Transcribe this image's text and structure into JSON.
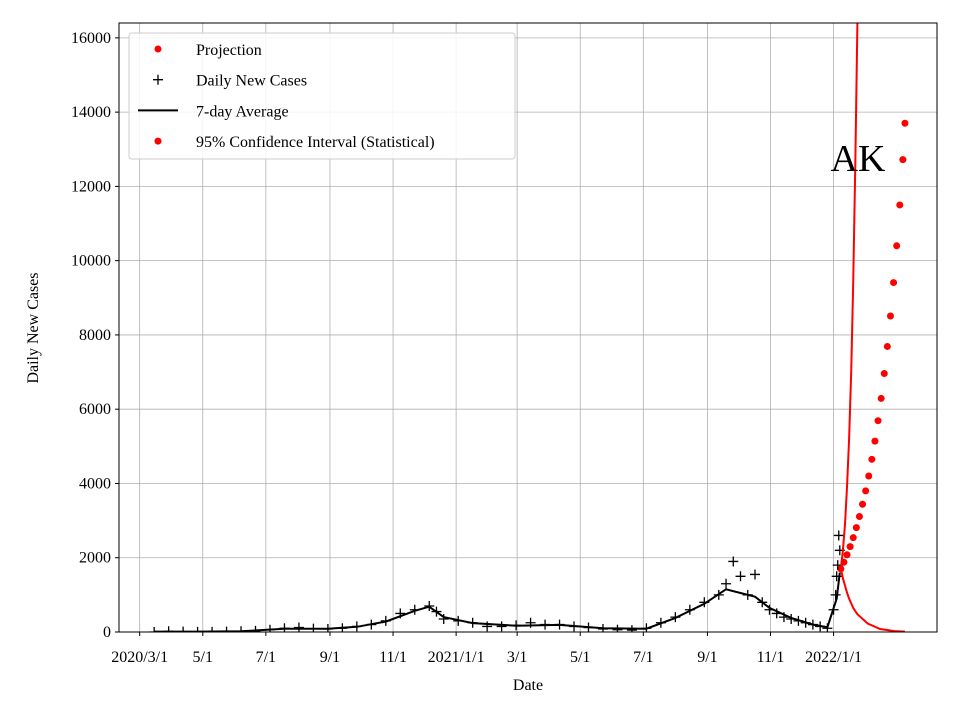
{
  "chart_data": {
    "type": "line",
    "annotation": "AK",
    "x_label": "Date",
    "y_label": "Daily New Cases",
    "xlim": [
      "2020-02-10",
      "2022-04-11"
    ],
    "xticks": [
      {
        "value": "2020-03-01",
        "label": "2020/3/1"
      },
      {
        "value": "2020-05-01",
        "label": "5/1"
      },
      {
        "value": "2020-07-01",
        "label": "7/1"
      },
      {
        "value": "2020-09-01",
        "label": "9/1"
      },
      {
        "value": "2020-11-01",
        "label": "11/1"
      },
      {
        "value": "2021-01-01",
        "label": "2021/1/1"
      },
      {
        "value": "2021-03-01",
        "label": "3/1"
      },
      {
        "value": "2021-05-01",
        "label": "5/1"
      },
      {
        "value": "2021-07-01",
        "label": "7/1"
      },
      {
        "value": "2021-09-01",
        "label": "9/1"
      },
      {
        "value": "2021-11-01",
        "label": "11/1"
      },
      {
        "value": "2022-01-01",
        "label": "2022/1/1"
      }
    ],
    "ylim": [
      0,
      16400
    ],
    "yticks": [
      0,
      2000,
      4000,
      6000,
      8000,
      10000,
      12000,
      14000,
      16000
    ],
    "grid": true,
    "legend": "upper left",
    "series": [
      {
        "name": "Projection",
        "color": "#ff0000",
        "marker": "dot",
        "x": [
          "2022-01-08",
          "2022-01-11",
          "2022-01-14",
          "2022-01-17",
          "2022-01-20",
          "2022-01-23",
          "2022-01-26",
          "2022-01-29",
          "2022-02-01",
          "2022-02-04",
          "2022-02-07",
          "2022-02-10",
          "2022-02-13",
          "2022-02-16",
          "2022-02-19",
          "2022-02-22",
          "2022-02-25",
          "2022-02-28",
          "2022-03-03",
          "2022-03-06",
          "2022-03-09",
          "2022-03-11"
        ],
        "values": [
          1700,
          1880,
          2080,
          2300,
          2540,
          2810,
          3110,
          3440,
          3800,
          4200,
          4650,
          5140,
          5690,
          6290,
          6960,
          7690,
          8510,
          9410,
          10400,
          11500,
          12720,
          13700
        ]
      },
      {
        "name": "Daily New Cases",
        "color": "#000000",
        "marker": "plus",
        "x": [
          "2020-03-15",
          "2020-03-29",
          "2020-04-12",
          "2020-04-26",
          "2020-05-10",
          "2020-05-24",
          "2020-06-07",
          "2020-06-21",
          "2020-07-05",
          "2020-07-19",
          "2020-08-02",
          "2020-08-16",
          "2020-08-30",
          "2020-09-13",
          "2020-09-27",
          "2020-10-11",
          "2020-10-25",
          "2020-11-08",
          "2020-11-22",
          "2020-12-06",
          "2020-12-13",
          "2020-12-20",
          "2021-01-03",
          "2021-01-17",
          "2021-01-31",
          "2021-02-14",
          "2021-02-28",
          "2021-03-14",
          "2021-03-28",
          "2021-04-11",
          "2021-04-25",
          "2021-05-09",
          "2021-05-23",
          "2021-06-06",
          "2021-06-20",
          "2021-07-04",
          "2021-07-18",
          "2021-08-01",
          "2021-08-15",
          "2021-08-29",
          "2021-09-12",
          "2021-09-19",
          "2021-09-26",
          "2021-10-03",
          "2021-10-10",
          "2021-10-17",
          "2021-10-24",
          "2021-10-31",
          "2021-11-07",
          "2021-11-14",
          "2021-11-21",
          "2021-11-28",
          "2021-12-05",
          "2021-12-12",
          "2021-12-19",
          "2021-12-26",
          "2022-01-01",
          "2022-01-03",
          "2022-01-04",
          "2022-01-05",
          "2022-01-06",
          "2022-01-07"
        ],
        "values": [
          0,
          20,
          10,
          5,
          5,
          10,
          20,
          30,
          60,
          100,
          120,
          90,
          80,
          100,
          150,
          200,
          300,
          500,
          600,
          700,
          550,
          350,
          300,
          250,
          150,
          150,
          180,
          250,
          200,
          200,
          150,
          120,
          80,
          60,
          50,
          100,
          250,
          400,
          600,
          800,
          1000,
          1300,
          1900,
          1500,
          1000,
          1550,
          800,
          600,
          500,
          400,
          350,
          300,
          250,
          200,
          150,
          100,
          600,
          1000,
          1500,
          1800,
          2600,
          2200
        ]
      },
      {
        "name": "7-day Average",
        "color": "#000000",
        "marker": "line",
        "x": [
          "2020-03-15",
          "2020-04-26",
          "2020-06-07",
          "2020-07-19",
          "2020-08-30",
          "2020-09-27",
          "2020-10-25",
          "2020-11-22",
          "2020-12-06",
          "2020-12-20",
          "2021-01-17",
          "2021-02-28",
          "2021-04-11",
          "2021-05-23",
          "2021-07-04",
          "2021-08-01",
          "2021-08-29",
          "2021-09-19",
          "2021-10-03",
          "2021-10-17",
          "2021-10-31",
          "2021-11-21",
          "2021-12-12",
          "2021-12-26",
          "2022-01-04",
          "2022-01-07"
        ],
        "values": [
          10,
          10,
          20,
          90,
          90,
          140,
          280,
          570,
          680,
          400,
          240,
          170,
          190,
          100,
          90,
          380,
          760,
          1150,
          1050,
          950,
          650,
          380,
          200,
          130,
          900,
          1600
        ]
      },
      {
        "name": "95% Confidence Interval (Statistical)",
        "color": "#ff0000",
        "marker": "dot",
        "line": true,
        "x": [
          "2022-01-08",
          "2022-01-10",
          "2022-01-12",
          "2022-01-14",
          "2022-01-16",
          "2022-01-18",
          "2022-01-20",
          "2022-01-22",
          "2022-01-24",
          "2022-02-03",
          "2022-02-15",
          "2022-03-01",
          "2022-03-11"
        ],
        "values": [
          1700,
          2200,
          2900,
          3900,
          5200,
          7000,
          9400,
          12600,
          16400,
          null,
          null,
          null,
          null
        ],
        "values_low": [
          1700,
          1450,
          1250,
          1060,
          900,
          770,
          650,
          560,
          480,
          230,
          80,
          25,
          10
        ]
      }
    ]
  }
}
